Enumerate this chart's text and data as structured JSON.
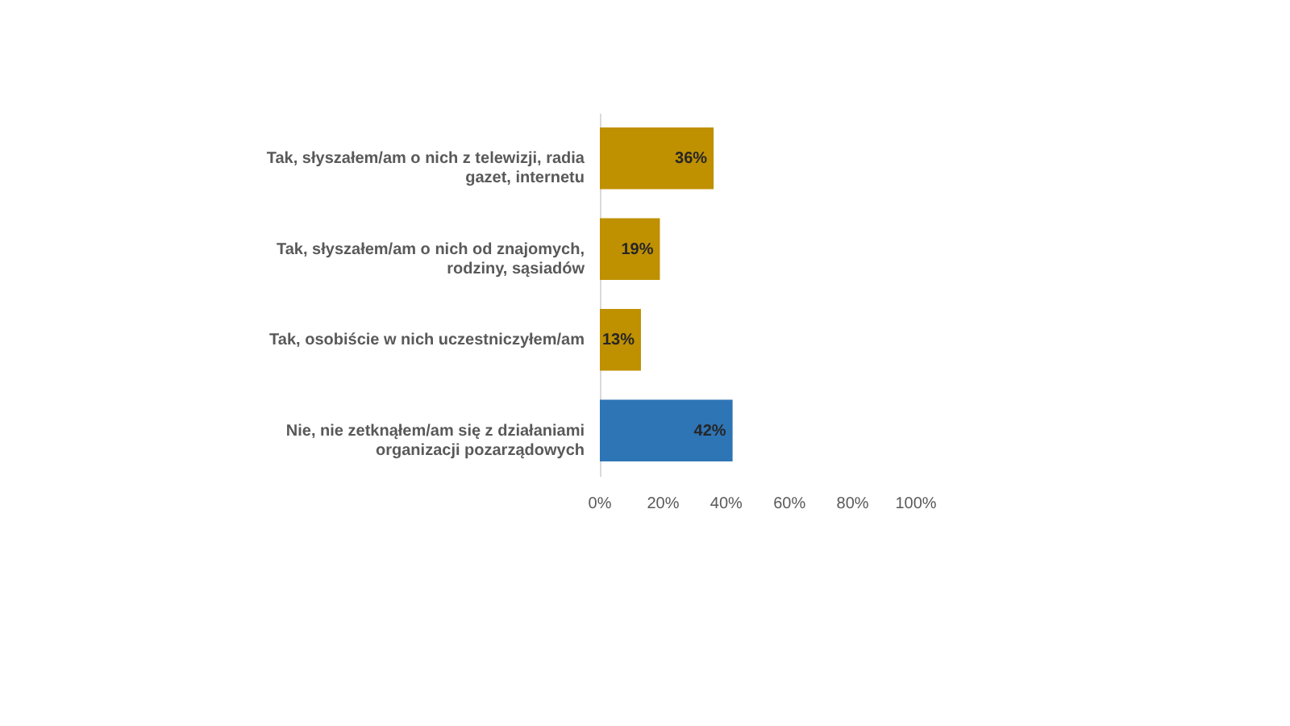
{
  "chart_data": {
    "type": "bar",
    "orientation": "horizontal",
    "categories": [
      "Tak, słyszałem/am o nich z telewizji, radia gazet, internetu",
      "Tak, słyszałem/am o nich od znajomych, rodziny, sąsiadów",
      "Tak, osobiście w nich uczestniczyłem/am",
      "Nie, nie zetknąłem/am się z działaniami organizacji pozarządowych"
    ],
    "values": [
      36,
      19,
      13,
      42
    ],
    "colors": [
      "#bf9000",
      "#bf9000",
      "#bf9000",
      "#2e75b6"
    ],
    "value_labels": [
      "36%",
      "19%",
      "13%",
      "42%"
    ],
    "xlim": [
      0,
      100
    ],
    "xticks": [
      {
        "value": 0,
        "label": "0%"
      },
      {
        "value": 20,
        "label": "20%"
      },
      {
        "value": 40,
        "label": "40%"
      },
      {
        "value": 60,
        "label": "60%"
      },
      {
        "value": 80,
        "label": "80%"
      },
      {
        "value": 100,
        "label": "100%"
      }
    ],
    "grid": false
  }
}
